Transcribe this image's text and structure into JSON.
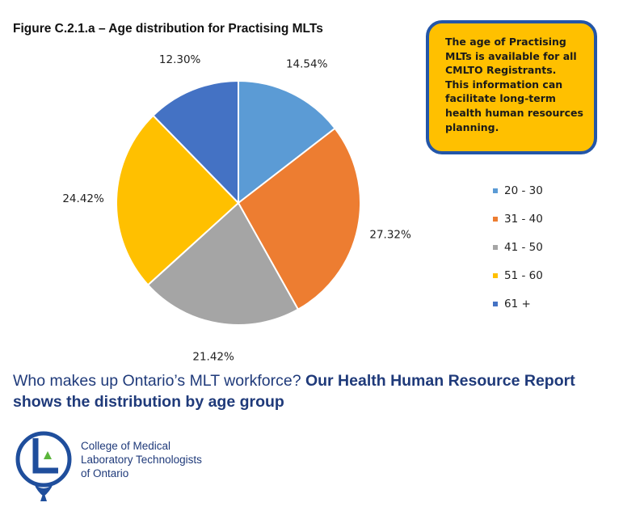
{
  "figure_title": "Figure C.2.1.a – Age distribution for Practising MLTs",
  "callout_lines": [
    "The age of Practising",
    "MLTs is available for all",
    "CMLTO Registrants.",
    "This information can",
    "facilitate long-term",
    "health human resources",
    "planning."
  ],
  "caption": {
    "normal": "Who makes up Ontario’s MLT workforce? ",
    "bold": "Our Health Human Resource Report shows the distribution by age group"
  },
  "organization": {
    "lines": [
      "College of Medical",
      "Laboratory Technologists",
      "of Ontario"
    ]
  },
  "colors": {
    "callout_bg": "#ffc000",
    "callout_border": "#2356a8",
    "caption": "#1f3a7a",
    "logo_blue": "#1f4e9c",
    "logo_green": "#5bb53b"
  },
  "icons": [
    "cmlto-logo-icon"
  ],
  "chart_data": {
    "type": "pie",
    "title": "Figure C.2.1.a – Age distribution for Practising MLTs",
    "legend_position": "right",
    "slices": [
      {
        "label": "20 - 30",
        "value": 14.54,
        "display": "14.54%",
        "color": "#5b9bd5"
      },
      {
        "label": "31 - 40",
        "value": 27.32,
        "display": "27.32%",
        "color": "#ed7d31"
      },
      {
        "label": "41 - 50",
        "value": 21.42,
        "display": "21.42%",
        "color": "#a5a5a5"
      },
      {
        "label": "51 - 60",
        "value": 24.42,
        "display": "24.42%",
        "color": "#ffc000"
      },
      {
        "label": "61 +",
        "value": 12.3,
        "display": "12.30%",
        "color": "#4472c4"
      }
    ]
  }
}
